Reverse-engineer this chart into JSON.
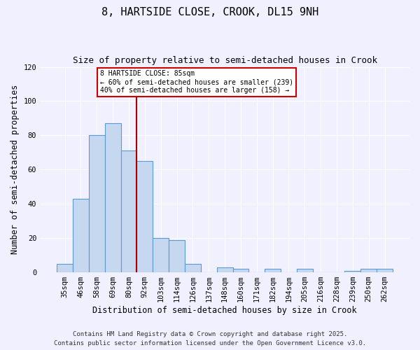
{
  "title": "8, HARTSIDE CLOSE, CROOK, DL15 9NH",
  "subtitle": "Size of property relative to semi-detached houses in Crook",
  "xlabel": "Distribution of semi-detached houses by size in Crook",
  "ylabel": "Number of semi-detached properties",
  "bar_labels": [
    "35sqm",
    "46sqm",
    "58sqm",
    "69sqm",
    "80sqm",
    "92sqm",
    "103sqm",
    "114sqm",
    "126sqm",
    "137sqm",
    "148sqm",
    "160sqm",
    "171sqm",
    "182sqm",
    "194sqm",
    "205sqm",
    "216sqm",
    "228sqm",
    "239sqm",
    "250sqm",
    "262sqm"
  ],
  "bar_values": [
    5,
    43,
    80,
    87,
    71,
    65,
    20,
    19,
    5,
    0,
    3,
    2,
    0,
    2,
    0,
    2,
    0,
    0,
    1,
    2,
    2
  ],
  "bar_color": "#c5d8f0",
  "bar_edge_color": "#5b9bd5",
  "ylim": [
    0,
    120
  ],
  "yticks": [
    0,
    20,
    40,
    60,
    80,
    100,
    120
  ],
  "vline_color": "#aa0000",
  "annotation_title": "8 HARTSIDE CLOSE: 85sqm",
  "annotation_line1": "← 60% of semi-detached houses are smaller (239)",
  "annotation_line2": "40% of semi-detached houses are larger (158) →",
  "annotation_box_color": "#cc0000",
  "footer1": "Contains HM Land Registry data © Crown copyright and database right 2025.",
  "footer2": "Contains public sector information licensed under the Open Government Licence v3.0.",
  "background_color": "#f0f0ff",
  "grid_color": "#ffffff",
  "title_fontsize": 11,
  "subtitle_fontsize": 9,
  "axis_label_fontsize": 8.5,
  "tick_fontsize": 7.5,
  "footer_fontsize": 6.5
}
